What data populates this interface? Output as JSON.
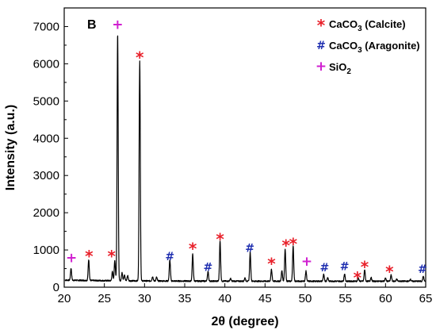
{
  "chart_data": {
    "type": "line",
    "panel_label": "B",
    "xlabel": "2θ (degree)",
    "ylabel": "Intensity (a.u.)",
    "xlim": [
      20,
      65
    ],
    "ylim": [
      0,
      7500
    ],
    "x_ticks": [
      20,
      25,
      30,
      35,
      40,
      45,
      50,
      55,
      60,
      65
    ],
    "y_ticks": [
      0,
      1000,
      2000,
      3000,
      4000,
      5000,
      6000,
      7000
    ],
    "grid": false,
    "legend_position": "top-right",
    "legend": [
      {
        "marker": "*",
        "color": "#e8202a",
        "label_parts": [
          "CaCO",
          "3",
          " (Calcite)"
        ]
      },
      {
        "marker": "#",
        "color": "#1f2fb0",
        "label_parts": [
          "CaCO",
          "3",
          " (Aragonite)"
        ]
      },
      {
        "marker": "+",
        "color": "#d020d0",
        "label_parts": [
          "SiO",
          "2",
          ""
        ]
      }
    ],
    "series": [
      {
        "color": "#000000",
        "baseline": 160,
        "peaks": [
          {
            "x": 20.85,
            "y": 480
          },
          {
            "x": 23.05,
            "y": 720
          },
          {
            "x": 26.0,
            "y": 400
          },
          {
            "x": 26.3,
            "y": 700
          },
          {
            "x": 26.65,
            "y": 6800
          },
          {
            "x": 27.2,
            "y": 380
          },
          {
            "x": 27.5,
            "y": 330
          },
          {
            "x": 27.9,
            "y": 300
          },
          {
            "x": 29.4,
            "y": 6050
          },
          {
            "x": 31.0,
            "y": 280
          },
          {
            "x": 31.5,
            "y": 260
          },
          {
            "x": 33.15,
            "y": 720
          },
          {
            "x": 36.0,
            "y": 880
          },
          {
            "x": 37.9,
            "y": 420
          },
          {
            "x": 39.4,
            "y": 1230
          },
          {
            "x": 40.7,
            "y": 230
          },
          {
            "x": 42.5,
            "y": 250
          },
          {
            "x": 43.15,
            "y": 930
          },
          {
            "x": 45.8,
            "y": 470
          },
          {
            "x": 47.1,
            "y": 440
          },
          {
            "x": 47.5,
            "y": 1030
          },
          {
            "x": 48.5,
            "y": 1100
          },
          {
            "x": 50.1,
            "y": 430
          },
          {
            "x": 52.3,
            "y": 340
          },
          {
            "x": 52.8,
            "y": 260
          },
          {
            "x": 54.9,
            "y": 350
          },
          {
            "x": 56.6,
            "y": 250
          },
          {
            "x": 57.4,
            "y": 470
          },
          {
            "x": 58.2,
            "y": 260
          },
          {
            "x": 60.0,
            "y": 240
          },
          {
            "x": 60.7,
            "y": 330
          },
          {
            "x": 61.4,
            "y": 220
          },
          {
            "x": 63.1,
            "y": 210
          },
          {
            "x": 64.7,
            "y": 290
          }
        ]
      }
    ],
    "peak_markers": [
      {
        "x": 20.9,
        "y": 780,
        "marker": "+",
        "phase": "SiO2"
      },
      {
        "x": 23.1,
        "y": 940,
        "marker": "*",
        "phase": "Calcite"
      },
      {
        "x": 25.9,
        "y": 940,
        "marker": "*",
        "phase": "Calcite"
      },
      {
        "x": 26.65,
        "y": 7040,
        "marker": "+",
        "phase": "SiO2"
      },
      {
        "x": 29.4,
        "y": 6280,
        "marker": "*",
        "phase": "Calcite"
      },
      {
        "x": 33.15,
        "y": 830,
        "marker": "#",
        "phase": "Aragonite"
      },
      {
        "x": 36.0,
        "y": 1140,
        "marker": "*",
        "phase": "Calcite"
      },
      {
        "x": 37.9,
        "y": 540,
        "marker": "#",
        "phase": "Aragonite"
      },
      {
        "x": 39.4,
        "y": 1400,
        "marker": "*",
        "phase": "Calcite"
      },
      {
        "x": 43.1,
        "y": 1050,
        "marker": "#",
        "phase": "Aragonite"
      },
      {
        "x": 45.8,
        "y": 740,
        "marker": "*",
        "phase": "Calcite"
      },
      {
        "x": 47.6,
        "y": 1230,
        "marker": "*",
        "phase": "Calcite"
      },
      {
        "x": 48.5,
        "y": 1270,
        "marker": "*",
        "phase": "Calcite"
      },
      {
        "x": 50.2,
        "y": 680,
        "marker": "+",
        "phase": "SiO2"
      },
      {
        "x": 52.4,
        "y": 530,
        "marker": "#",
        "phase": "Aragonite"
      },
      {
        "x": 54.9,
        "y": 560,
        "marker": "#",
        "phase": "Aragonite"
      },
      {
        "x": 56.5,
        "y": 360,
        "marker": "*",
        "phase": "Calcite"
      },
      {
        "x": 57.4,
        "y": 650,
        "marker": "*",
        "phase": "Calcite"
      },
      {
        "x": 60.5,
        "y": 520,
        "marker": "*",
        "phase": "Calcite"
      },
      {
        "x": 64.6,
        "y": 490,
        "marker": "#",
        "phase": "Aragonite"
      }
    ]
  }
}
